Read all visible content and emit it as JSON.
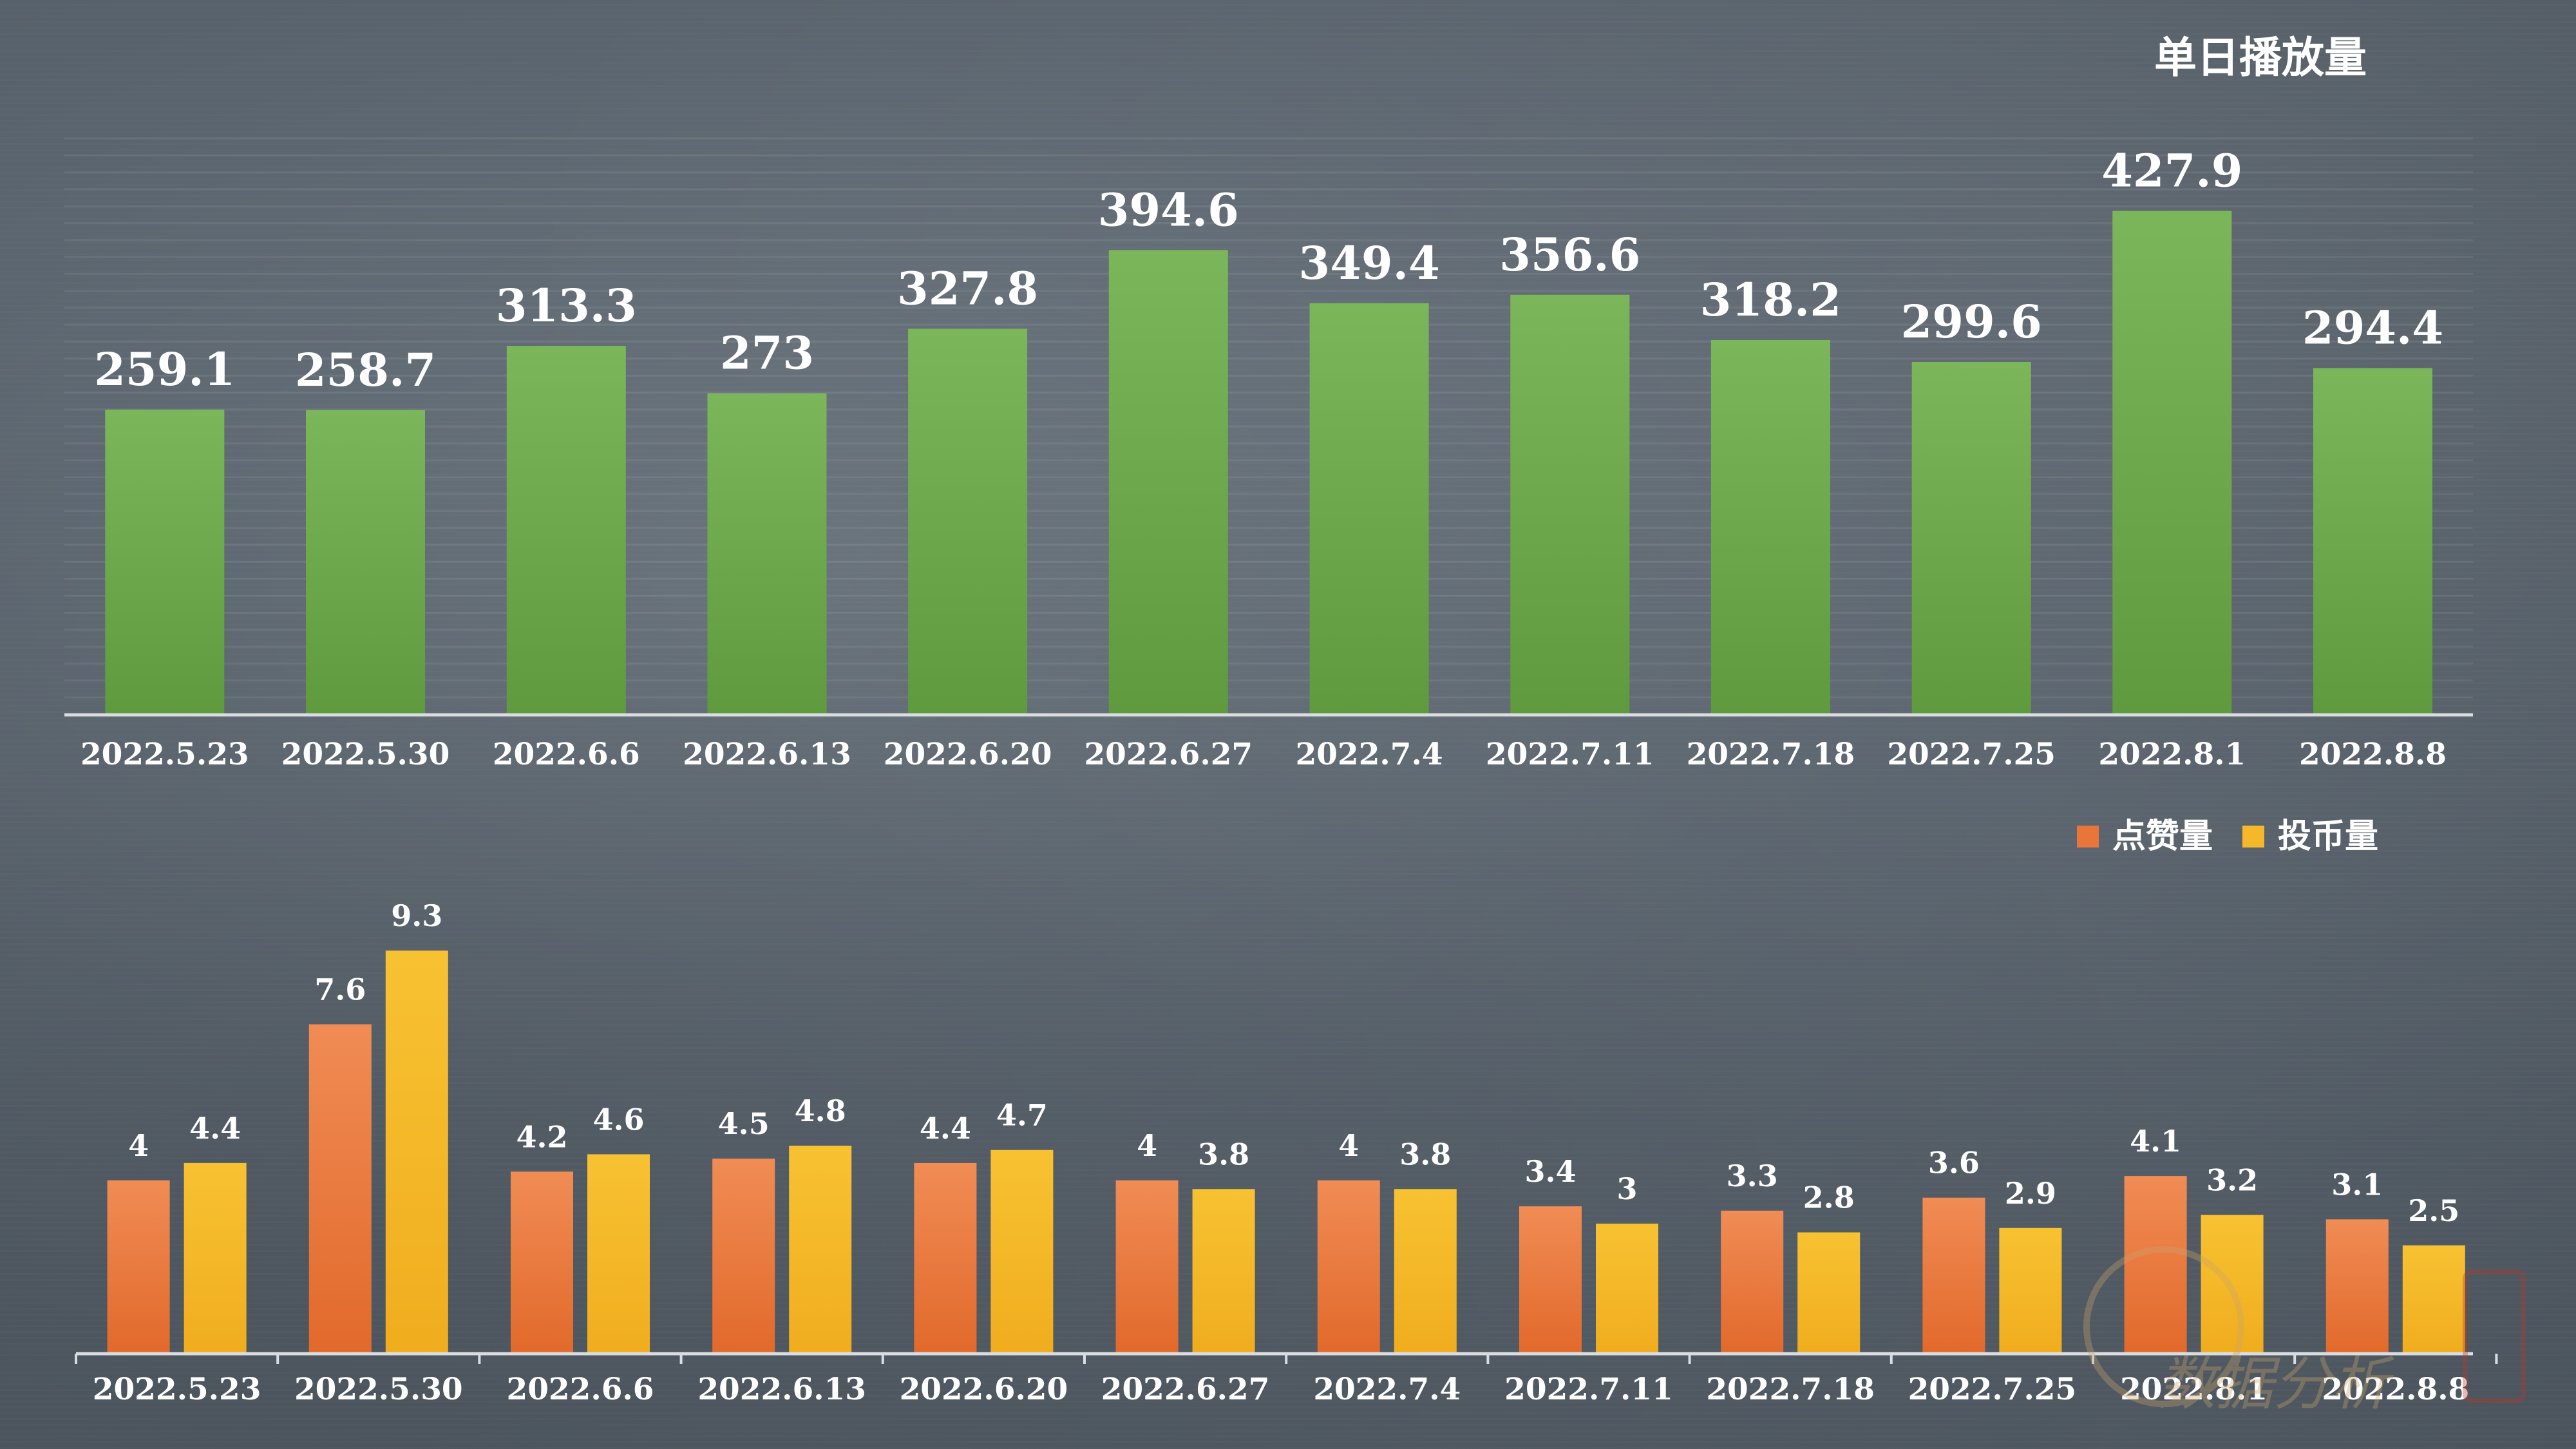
{
  "chart_data": [
    {
      "type": "bar",
      "title": "单日播放量",
      "categories": [
        "2022.5.23",
        "2022.5.30",
        "2022.6.6",
        "2022.6.13",
        "2022.6.20",
        "2022.6.27",
        "2022.7.4",
        "2022.7.11",
        "2022.7.18",
        "2022.7.25",
        "2022.8.1",
        "2022.8.8"
      ],
      "series": [
        {
          "name": "单日播放量",
          "values": [
            259.1,
            258.7,
            313.3,
            273,
            327.8,
            394.6,
            349.4,
            356.6,
            318.2,
            299.6,
            427.9,
            294.4
          ],
          "color": "#6ea84a"
        }
      ],
      "ylim": [
        0,
        450
      ]
    },
    {
      "type": "bar",
      "categories": [
        "2022.5.23",
        "2022.5.30",
        "2022.6.6",
        "2022.6.13",
        "2022.6.20",
        "2022.6.27",
        "2022.7.4",
        "2022.7.11",
        "2022.7.18",
        "2022.7.25",
        "2022.8.1",
        "2022.8.8"
      ],
      "series": [
        {
          "name": "点赞量",
          "values": [
            4,
            7.6,
            4.2,
            4.5,
            4.4,
            4,
            4,
            3.4,
            3.3,
            3.6,
            4.1,
            3.1
          ],
          "color": "#e8763a"
        },
        {
          "name": "投币量",
          "values": [
            4.4,
            9.3,
            4.6,
            4.8,
            4.7,
            3.8,
            3.8,
            3,
            2.8,
            2.9,
            3.2,
            2.5
          ],
          "color": "#f5b82a"
        }
      ],
      "legend": "top-right",
      "ylim": [
        0,
        10
      ]
    }
  ],
  "watermark": {
    "text": "数据分析"
  }
}
